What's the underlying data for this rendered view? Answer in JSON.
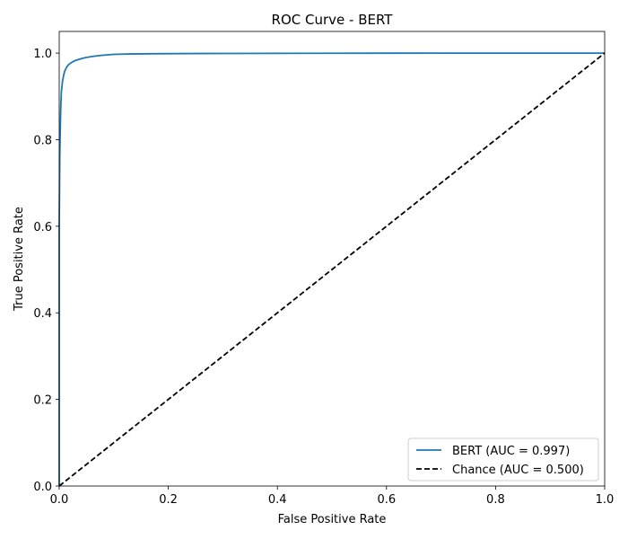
{
  "chart_data": {
    "type": "line",
    "title": "ROC Curve - BERT",
    "xlabel": "False Positive Rate",
    "ylabel": "True Positive Rate",
    "xlim": [
      0.0,
      1.0
    ],
    "ylim": [
      0.0,
      1.05
    ],
    "xticks": [
      0.0,
      0.2,
      0.4,
      0.6,
      0.8,
      1.0
    ],
    "xtick_labels": [
      "0.0",
      "0.2",
      "0.4",
      "0.6",
      "0.8",
      "1.0"
    ],
    "yticks": [
      0.0,
      0.2,
      0.4,
      0.6,
      0.8,
      1.0
    ],
    "ytick_labels": [
      "0.0",
      "0.2",
      "0.4",
      "0.6",
      "0.8",
      "1.0"
    ],
    "grid": false,
    "legend_position": "lower-right",
    "series": [
      {
        "name": "BERT (AUC = 0.997)",
        "color": "#1f77b4",
        "style": "solid",
        "x": [
          0.0,
          0.0,
          0.001,
          0.002,
          0.003,
          0.004,
          0.006,
          0.008,
          0.01,
          0.013,
          0.016,
          0.02,
          0.025,
          0.03,
          0.04,
          0.05,
          0.065,
          0.08,
          0.1,
          0.13,
          0.17,
          0.25,
          0.4,
          0.6,
          0.8,
          1.0
        ],
        "y": [
          0.0,
          0.6,
          0.76,
          0.83,
          0.88,
          0.91,
          0.935,
          0.948,
          0.958,
          0.966,
          0.972,
          0.976,
          0.98,
          0.983,
          0.987,
          0.99,
          0.993,
          0.995,
          0.997,
          0.998,
          0.9985,
          0.999,
          0.9995,
          0.9998,
          1.0,
          1.0
        ]
      },
      {
        "name": "Chance (AUC = 0.500)",
        "color": "#000000",
        "style": "dashed",
        "x": [
          0.0,
          1.0
        ],
        "y": [
          0.0,
          1.0
        ]
      }
    ]
  }
}
